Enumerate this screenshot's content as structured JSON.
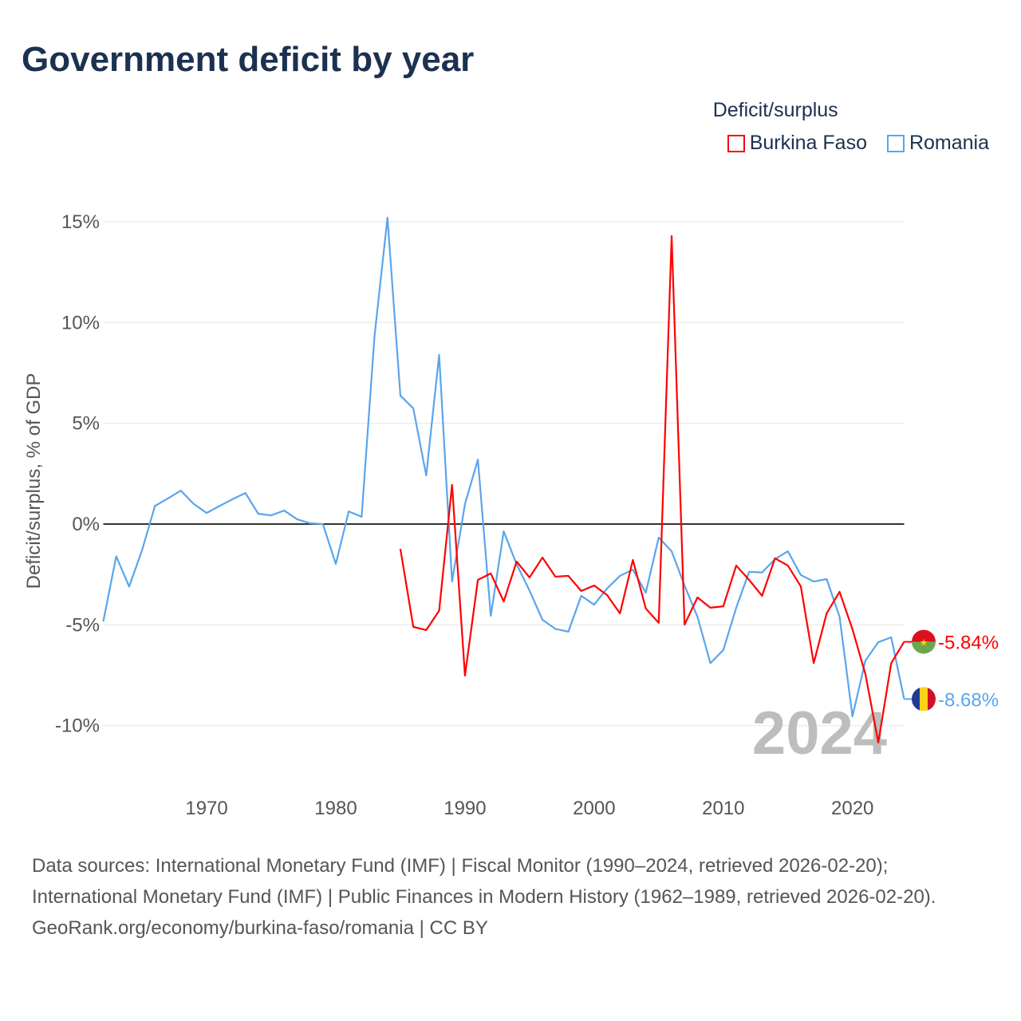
{
  "title": "Government deficit by year",
  "legend": {
    "title": "Deficit/surplus",
    "items": [
      {
        "label": "Burkina Faso",
        "color": "#ff0000"
      },
      {
        "label": "Romania",
        "color": "#5aa5ec"
      }
    ]
  },
  "chart_data": {
    "type": "line",
    "title": "Government deficit by year",
    "xlabel": "",
    "ylabel": "Deficit/surplus, % of GDP",
    "xlim": [
      1962,
      2024
    ],
    "ylim": [
      -12.5,
      15.5
    ],
    "yticks": [
      15,
      10,
      5,
      0,
      -5,
      -10
    ],
    "ytick_labels": [
      "15%",
      "10%",
      "5%",
      "0%",
      "-5%",
      "-10%"
    ],
    "xticks": [
      1970,
      1980,
      1990,
      2000,
      2010,
      2020
    ],
    "xtick_labels": [
      "1970",
      "1980",
      "1990",
      "2000",
      "2010",
      "2020"
    ],
    "grid": true,
    "legend_position": "top-right",
    "year_label": "2024",
    "series": [
      {
        "name": "Burkina Faso",
        "color": "#ff0000",
        "start_year": 1985,
        "end_label": "-5.84%",
        "values": [
          -1.23,
          -5.1,
          -5.26,
          -4.3,
          1.94,
          -7.52,
          -2.77,
          -2.45,
          -3.84,
          -1.86,
          -2.65,
          -1.66,
          -2.61,
          -2.57,
          -3.32,
          -3.05,
          -3.52,
          -4.43,
          -1.78,
          -4.19,
          -4.9,
          14.29,
          -4.99,
          -3.64,
          -4.15,
          -4.08,
          -2.06,
          -2.77,
          -3.56,
          -1.7,
          -2.06,
          -3.09,
          -6.9,
          -4.43,
          -3.36,
          -5.22,
          -7.44,
          -10.84,
          -6.9,
          -5.84
        ]
      },
      {
        "name": "Romania",
        "color": "#5aa5ec",
        "start_year": 1962,
        "end_label": "-8.68%",
        "values": [
          -4.83,
          -1.6,
          -3.1,
          -1.3,
          0.9,
          1.27,
          1.66,
          1.0,
          0.55,
          0.9,
          1.23,
          1.54,
          0.51,
          0.43,
          0.67,
          0.24,
          0.04,
          0,
          -1.98,
          0.63,
          0.36,
          9.34,
          15.2,
          6.37,
          5.74,
          2.41,
          8.39,
          -2.85,
          0.99,
          3.2,
          -4.55,
          -0.36,
          -2.0,
          -3.3,
          -4.75,
          -5.2,
          -5.34,
          -3.56,
          -4.0,
          -3.2,
          -2.57,
          -2.26,
          -3.4,
          -0.67,
          -1.35,
          -3.05,
          -4.6,
          -6.9,
          -6.25,
          -4.15,
          -2.37,
          -2.4,
          -1.74,
          -1.35,
          -2.53,
          -2.85,
          -2.73,
          -4.6,
          -9.54,
          -6.77,
          -5.86,
          -5.62,
          -8.68
        ]
      }
    ]
  },
  "footer": {
    "sources": "Data sources: International Monetary Fund (IMF) | Fiscal Monitor (1990–2024, retrieved 2026-02-20); International Monetary Fund (IMF) | Public Finances in Modern History (1962–1989, retrieved 2026-02-20).",
    "link": "GeoRank.org/economy/burkina-faso/romania | CC BY"
  }
}
